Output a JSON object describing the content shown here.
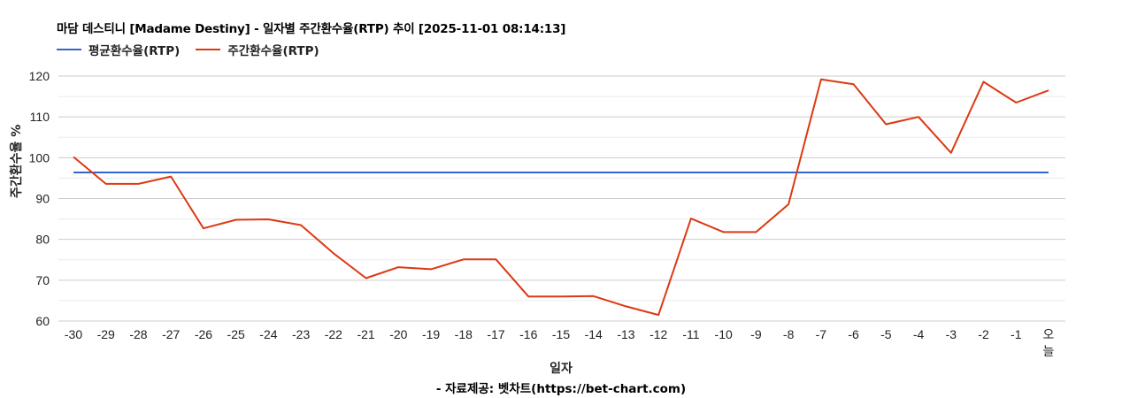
{
  "header": {
    "title": "마담 데스티니 [Madame Destiny] - 일자별 주간환수율(RTP) 추이 [2025-11-01 08:14:13]"
  },
  "legend": [
    {
      "label": "평균환수율(RTP)",
      "color": "#3366cc"
    },
    {
      "label": "주간환수율(RTP)",
      "color": "#dc3912"
    }
  ],
  "axes": {
    "ylabel": "주간환수율 %",
    "xlabel": "일자"
  },
  "footer": {
    "source": "- 자료제공: 벳차트(https://bet-chart.com)"
  },
  "chart_data": {
    "type": "line",
    "title": "마담 데스티니 [Madame Destiny] - 일자별 주간환수율(RTP) 추이 [2025-11-01 08:14:13]",
    "xlabel": "일자",
    "ylabel": "주간환수율 %",
    "ylim": [
      60,
      120
    ],
    "yticks": [
      60,
      70,
      80,
      90,
      100,
      110,
      120
    ],
    "grid": true,
    "legend_position": "top",
    "categories": [
      "-30",
      "-29",
      "-28",
      "-27",
      "-26",
      "-25",
      "-24",
      "-23",
      "-22",
      "-21",
      "-20",
      "-19",
      "-18",
      "-17",
      "-16",
      "-15",
      "-14",
      "-13",
      "-12",
      "-11",
      "-10",
      "-9",
      "-8",
      "-7",
      "-6",
      "-5",
      "-4",
      "-3",
      "-2",
      "-1",
      "오늘"
    ],
    "series": [
      {
        "name": "평균환수율(RTP)",
        "color": "#3366cc",
        "values": [
          96.4,
          96.4,
          96.4,
          96.4,
          96.4,
          96.4,
          96.4,
          96.4,
          96.4,
          96.4,
          96.4,
          96.4,
          96.4,
          96.4,
          96.4,
          96.4,
          96.4,
          96.4,
          96.4,
          96.4,
          96.4,
          96.4,
          96.4,
          96.4,
          96.4,
          96.4,
          96.4,
          96.4,
          96.4,
          96.4,
          96.4
        ]
      },
      {
        "name": "주간환수율(RTP)",
        "color": "#dc3912",
        "values": [
          100.2,
          93.6,
          93.6,
          95.4,
          82.7,
          84.8,
          84.9,
          83.5,
          76.6,
          70.5,
          73.2,
          72.7,
          75.1,
          75.1,
          66.0,
          66.0,
          66.1,
          63.6,
          61.5,
          85.1,
          81.8,
          81.8,
          88.6,
          119.2,
          118.0,
          108.2,
          110.0,
          101.2,
          118.6,
          113.5,
          116.5
        ]
      }
    ]
  }
}
